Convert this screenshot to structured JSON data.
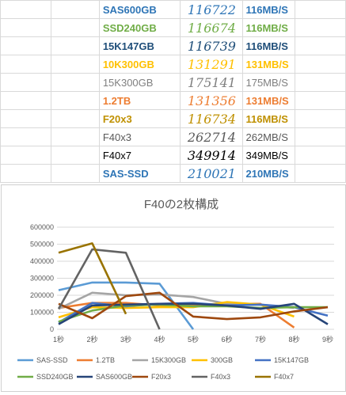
{
  "table": {
    "rows": [
      {
        "name": "SAS600GB",
        "score": "116722",
        "speed": "116MB/S",
        "color": "#2e75b6",
        "bold": true
      },
      {
        "name": "SSD240GB",
        "score": "116674",
        "speed": "116MB/S",
        "color": "#70ad47",
        "bold": true
      },
      {
        "name": "15K147GB",
        "score": "116739",
        "speed": "116MB/S",
        "color": "#1f4e79",
        "bold": true
      },
      {
        "name": "10K300GB",
        "score": "131291",
        "speed": "131MB/S",
        "color": "#ffc000",
        "bold": true
      },
      {
        "name": "15K300GB",
        "score": "175141",
        "speed": "175MB/S",
        "color": "#7f7f7f",
        "bold": false
      },
      {
        "name": "1.2TB",
        "score": "131356",
        "speed": "131MB/S",
        "color": "#ed7d31",
        "bold": true
      },
      {
        "name": "F20x3",
        "score": "116734",
        "speed": "116MB/S",
        "color": "#bf9000",
        "bold": true
      },
      {
        "name": "F40x3",
        "score": "262714",
        "speed": "262MB/S",
        "color": "#595959",
        "bold": false
      },
      {
        "name": "F40x7",
        "score": "349914",
        "speed": "349MB/S",
        "color": "#000000",
        "bold": false
      },
      {
        "name": "SAS-SSD",
        "score": "210021",
        "speed": "210MB/S",
        "color": "#2e75b6",
        "bold": true
      }
    ]
  },
  "chart_data": {
    "type": "line",
    "title": "F40の2枚構成",
    "categories": [
      "1秒",
      "2秒",
      "3秒",
      "4秒",
      "5秒",
      "6秒",
      "7秒",
      "8秒",
      "9秒"
    ],
    "ylim": [
      0,
      600000
    ],
    "yticks": [
      0,
      100000,
      200000,
      300000,
      400000,
      500000,
      600000
    ],
    "ytick_labels": [
      "0",
      "100000",
      "200000",
      "300000",
      "400000",
      "500000",
      "600000"
    ],
    "grid": true,
    "legend_position": "bottom",
    "series": [
      {
        "name": "SAS-SSD",
        "color": "#5b9bd5",
        "values": [
          230000,
          275000,
          275000,
          268000,
          0,
          null,
          null,
          null,
          null
        ]
      },
      {
        "name": "1.2TB",
        "color": "#ed7d31",
        "values": [
          125000,
          155000,
          155000,
          140000,
          145000,
          150000,
          150000,
          10000,
          null
        ]
      },
      {
        "name": "15K300GB",
        "color": "#a5a5a5",
        "values": [
          120000,
          215000,
          200000,
          205000,
          190000,
          150000,
          145000,
          125000,
          null
        ]
      },
      {
        "name": "300GB",
        "color": "#ffc000",
        "values": [
          70000,
          130000,
          125000,
          130000,
          130000,
          160000,
          145000,
          75000,
          null
        ]
      },
      {
        "name": "15K147GB",
        "color": "#4472c4",
        "values": [
          40000,
          155000,
          135000,
          150000,
          155000,
          140000,
          145000,
          130000,
          80000
        ]
      },
      {
        "name": "SSD240GB",
        "color": "#70ad47",
        "values": [
          45000,
          110000,
          140000,
          145000,
          135000,
          135000,
          125000,
          130000,
          130000
        ]
      },
      {
        "name": "SAS600GB",
        "color": "#264478",
        "values": [
          30000,
          140000,
          145000,
          150000,
          150000,
          140000,
          120000,
          150000,
          30000
        ]
      },
      {
        "name": "F20x3",
        "color": "#9e480e",
        "values": [
          150000,
          65000,
          195000,
          215000,
          75000,
          60000,
          70000,
          105000,
          130000
        ]
      },
      {
        "name": "F40x3",
        "color": "#636363",
        "values": [
          120000,
          470000,
          450000,
          0,
          null,
          null,
          null,
          null,
          null
        ]
      },
      {
        "name": "F40x7",
        "color": "#997300",
        "values": [
          450000,
          505000,
          90000,
          null,
          null,
          null,
          null,
          null,
          null
        ]
      }
    ]
  }
}
